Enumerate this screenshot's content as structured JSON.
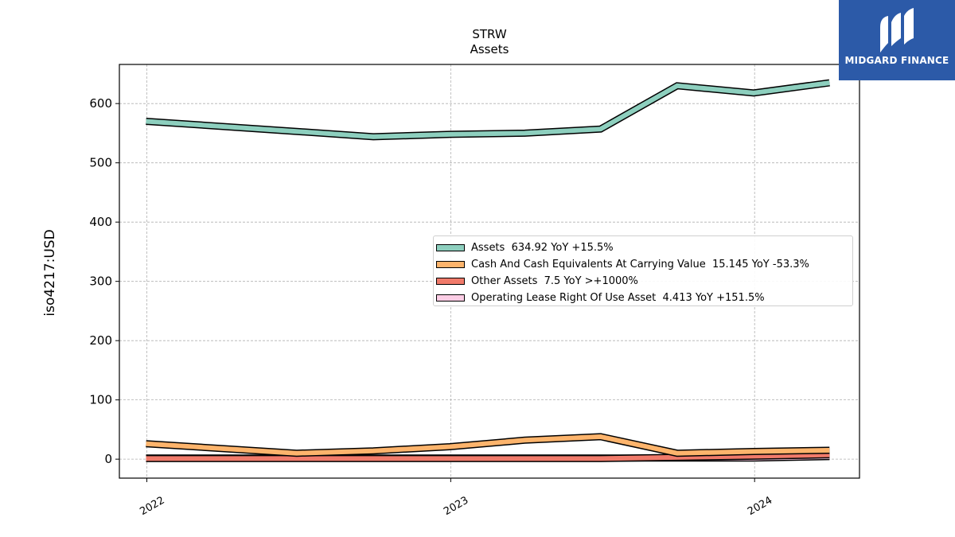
{
  "chart_data": {
    "type": "line",
    "title": "STRW",
    "subtitle": "Assets",
    "ylabel": "iso4217:USD",
    "ylim": [
      -32,
      666
    ],
    "xlim": [
      "2021-11-29",
      "2024-05-06"
    ],
    "yticks": [
      0,
      100,
      200,
      300,
      400,
      500,
      600
    ],
    "xticks": [
      {
        "date": "2022-01-01",
        "label": "2022"
      },
      {
        "date": "2023-01-01",
        "label": "2023"
      },
      {
        "date": "2024-01-01",
        "label": "2024"
      }
    ],
    "grid": true,
    "legend_position": "center-right",
    "series": [
      {
        "name": "Assets",
        "legend": "Assets  634.92 YoY +15.5%",
        "color": "#8dcfbe",
        "x": [
          "2021-12-31",
          "2022-06-30",
          "2022-09-30",
          "2022-12-31",
          "2023-03-31",
          "2023-06-30",
          "2023-09-30",
          "2023-12-31",
          "2024-03-31"
        ],
        "values": [
          570,
          553,
          544,
          548,
          550,
          557,
          630,
          618,
          635
        ]
      },
      {
        "name": "Cash And Cash Equivalents At Carrying Value",
        "legend": "Cash And Cash Equivalents At Carrying Value  15.145 YoY -53.3%",
        "color": "#fdb46c",
        "x": [
          "2021-12-31",
          "2022-06-30",
          "2022-09-30",
          "2022-12-31",
          "2023-03-31",
          "2023-06-30",
          "2023-09-30",
          "2023-12-31",
          "2024-03-31"
        ],
        "values": [
          26,
          10,
          14,
          21,
          32,
          38,
          10,
          13,
          15
        ]
      },
      {
        "name": "Other Assets",
        "legend": "Other Assets  7.5 YoY >+1000%",
        "color": "#f07a6a",
        "x": [
          "2021-12-31",
          "2022-06-30",
          "2022-09-30",
          "2022-12-31",
          "2023-03-31",
          "2023-06-30",
          "2023-09-30",
          "2023-12-31",
          "2024-03-31"
        ],
        "values": [
          1,
          1,
          1,
          1,
          1,
          1,
          3,
          5,
          7.5
        ]
      },
      {
        "name": "Operating Lease Right Of Use Asset",
        "legend": "Operating Lease Right Of Use Asset  4.413 YoY +151.5%",
        "color": "#fccde5",
        "x": [
          "2021-12-31",
          "2022-06-30",
          "2022-09-30",
          "2022-12-31",
          "2023-03-31",
          "2023-06-30",
          "2023-09-30",
          "2023-12-31",
          "2024-03-31"
        ],
        "values": [
          2,
          2,
          2,
          2,
          2,
          2,
          2,
          2,
          4.4
        ]
      }
    ]
  },
  "logo": {
    "text": "MIDGARD FINANCE",
    "color": "#2c5aa8"
  }
}
